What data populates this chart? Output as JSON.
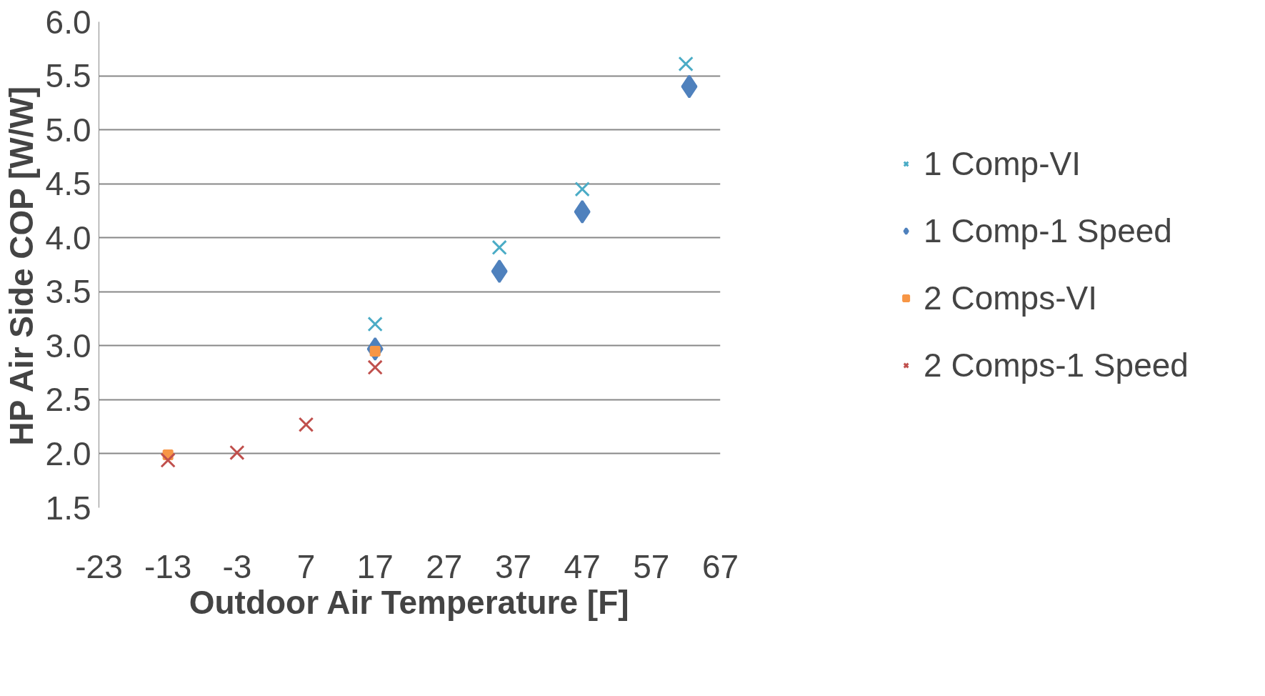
{
  "chart_data": {
    "type": "scatter",
    "xlabel": "Outdoor Air Temperature [F]",
    "ylabel": "HP Air Side COP [W/W]",
    "xlim": [
      -23,
      67
    ],
    "xticks": [
      -23,
      -13,
      -3,
      7,
      17,
      27,
      37,
      47,
      57,
      67
    ],
    "ylim": [
      1.5,
      6.0
    ],
    "yticks": [
      {
        "value": 1.5,
        "label": "1.5"
      },
      {
        "value": 2.0,
        "label": "2.0"
      },
      {
        "value": 2.5,
        "label": "2.5"
      },
      {
        "value": 3.0,
        "label": "3.0"
      },
      {
        "value": 3.5,
        "label": "3.5"
      },
      {
        "value": 4.0,
        "label": "4.0"
      },
      {
        "value": 4.5,
        "label": "4.5"
      },
      {
        "value": 5.0,
        "label": "5.0"
      },
      {
        "value": 5.5,
        "label": "5.5"
      },
      {
        "value": 6.0,
        "label": "6.0"
      }
    ],
    "grid": "y",
    "legend": "right",
    "series": [
      {
        "name": "1 Comp-VI",
        "color": "#4bacc6",
        "marker": "cross",
        "x": [
          17,
          35,
          47,
          62
        ],
        "values": [
          3.2,
          3.91,
          4.45,
          5.61
        ]
      },
      {
        "name": "1 Comp-1 Speed",
        "color": "#4f81bd",
        "marker": "diamond",
        "x": [
          17,
          35,
          47,
          62.5
        ],
        "values": [
          2.97,
          3.69,
          4.24,
          5.4
        ]
      },
      {
        "name": "2 Comps-VI",
        "color": "#f79646",
        "marker": "square",
        "x": [
          -13,
          17
        ],
        "values": [
          1.99,
          2.95
        ]
      },
      {
        "name": "2 Comps-1 Speed",
        "color": "#c0504d",
        "marker": "cross",
        "x": [
          -13,
          -3,
          7,
          17
        ],
        "values": [
          1.94,
          2.01,
          2.27,
          2.8
        ]
      }
    ]
  }
}
